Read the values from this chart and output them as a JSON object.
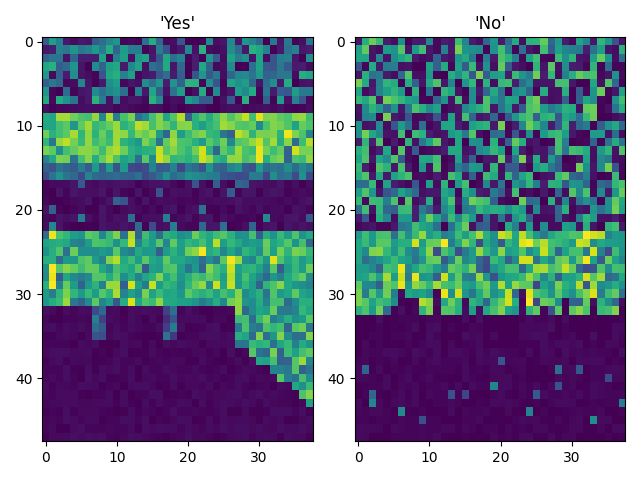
{
  "title_yes": "'Yes'",
  "title_no": "'No'",
  "colormap": "viridis",
  "figsize": [
    6.4,
    4.8
  ],
  "dpi": 100,
  "seed": 7
}
